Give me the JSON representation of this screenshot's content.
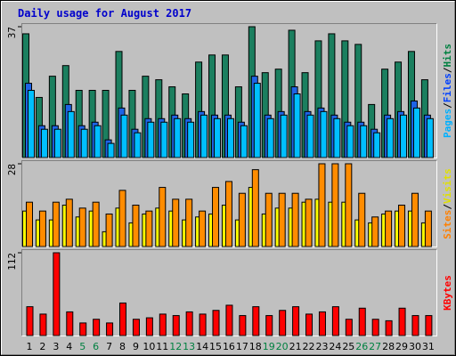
{
  "title": "Daily usage for August 2017",
  "chart_data": [
    {
      "type": "bar",
      "ylim": [
        0,
        37
      ],
      "yticks": [
        37
      ],
      "legend_separator": "/",
      "series": [
        {
          "name": "Hits",
          "color": "#1b7f5f",
          "label_color": "#008040",
          "values": [
            35,
            17,
            23,
            26,
            19,
            19,
            19,
            30,
            19,
            23,
            22,
            20,
            18,
            27,
            29,
            29,
            20,
            37,
            24,
            25,
            36,
            24,
            33,
            35,
            33,
            32,
            15,
            25,
            27,
            30,
            22
          ]
        },
        {
          "name": "Files",
          "color": "#1e64e6",
          "label_color": "#0040ff",
          "values": [
            21,
            9,
            9,
            15,
            9,
            10,
            5,
            14,
            8,
            11,
            11,
            12,
            11,
            13,
            12,
            12,
            10,
            23,
            12,
            13,
            20,
            13,
            14,
            12,
            10,
            10,
            8,
            12,
            13,
            16,
            12
          ]
        },
        {
          "name": "Pages",
          "color": "#00bfff",
          "label_color": "#00b0ff",
          "values": [
            19,
            8,
            8,
            13,
            8,
            9,
            4,
            12,
            7,
            10,
            10,
            11,
            10,
            12,
            11,
            11,
            9,
            21,
            11,
            12,
            18,
            12,
            13,
            11,
            9,
            9,
            7,
            11,
            12,
            14,
            11
          ]
        }
      ]
    },
    {
      "type": "bar",
      "ylim": [
        0,
        28
      ],
      "yticks": [
        28
      ],
      "legend_separator": "/",
      "series": [
        {
          "name": "Visits",
          "color": "#ffff00",
          "label_color": "#e0e000",
          "values": [
            12,
            9,
            9,
            14,
            10,
            12,
            5,
            13,
            8,
            11,
            13,
            12,
            9,
            10,
            11,
            14,
            9,
            20,
            11,
            13,
            13,
            15,
            16,
            15,
            15,
            9,
            8,
            11,
            12,
            12,
            8
          ]
        },
        {
          "name": "Sites",
          "color": "#ff8c00",
          "label_color": "#ff8000",
          "values": [
            15,
            12,
            15,
            16,
            13,
            15,
            11,
            19,
            14,
            12,
            20,
            16,
            16,
            12,
            20,
            22,
            18,
            26,
            18,
            18,
            18,
            16,
            28,
            28,
            28,
            18,
            10,
            12,
            14,
            18,
            12
          ]
        }
      ]
    },
    {
      "type": "bar",
      "ylim": [
        0,
        112
      ],
      "yticks": [
        112
      ],
      "series": [
        {
          "name": "KBytes",
          "color": "#ff0000",
          "label_color": "#ff0000",
          "values": [
            39,
            29,
            112,
            32,
            17,
            22,
            17,
            44,
            22,
            24,
            29,
            27,
            32,
            29,
            34,
            41,
            27,
            39,
            27,
            34,
            39,
            29,
            32,
            39,
            22,
            37,
            22,
            20,
            37,
            27,
            27
          ]
        }
      ],
      "categories": [
        "1",
        "2",
        "3",
        "4",
        "5",
        "6",
        "7",
        "8",
        "9",
        "10",
        "11",
        "12",
        "13",
        "14",
        "15",
        "16",
        "17",
        "18",
        "19",
        "20",
        "21",
        "22",
        "23",
        "24",
        "25",
        "26",
        "27",
        "28",
        "29",
        "30",
        "31"
      ],
      "category_colors": [
        "#000",
        "#000",
        "#000",
        "#000",
        "#008040",
        "#008040",
        "#000",
        "#000",
        "#000",
        "#000",
        "#000",
        "#008040",
        "#008040",
        "#000",
        "#000",
        "#000",
        "#000",
        "#000",
        "#008040",
        "#008040",
        "#000",
        "#000",
        "#000",
        "#000",
        "#000",
        "#008040",
        "#008040",
        "#000",
        "#000",
        "#000",
        "#000"
      ]
    }
  ]
}
